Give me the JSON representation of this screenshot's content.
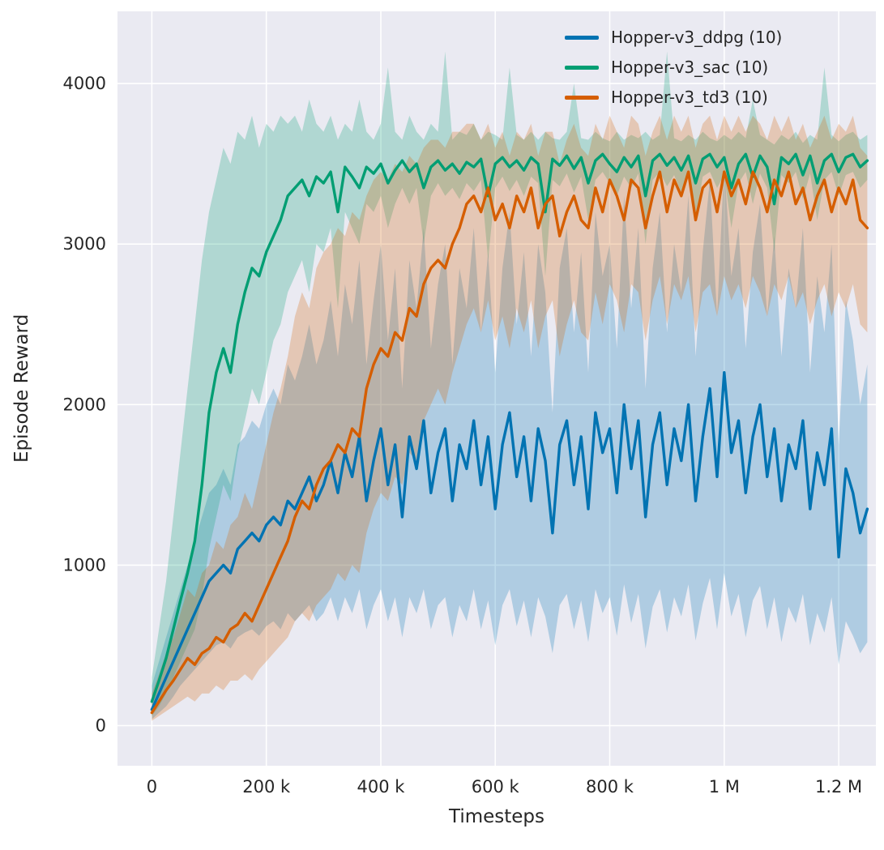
{
  "chart_data": {
    "type": "line",
    "title": "",
    "xlabel": "Timesteps",
    "ylabel": "Episode Reward",
    "xlim": [
      -60000,
      1265000
    ],
    "ylim": [
      -250,
      4450
    ],
    "grid": true,
    "plot_bg": "#eaeaf2",
    "grid_color": "#ffffff",
    "band_opacity": 0.25,
    "legend_position": "upper right",
    "x_ticks": [
      {
        "v": 0,
        "label": "0"
      },
      {
        "v": 200000,
        "label": "200 k"
      },
      {
        "v": 400000,
        "label": "400 k"
      },
      {
        "v": 600000,
        "label": "600 k"
      },
      {
        "v": 800000,
        "label": "800 k"
      },
      {
        "v": 1000000,
        "label": "1 M"
      },
      {
        "v": 1200000,
        "label": "1.2 M"
      }
    ],
    "y_ticks": [
      {
        "v": 0,
        "label": "0"
      },
      {
        "v": 1000,
        "label": "1000"
      },
      {
        "v": 2000,
        "label": "2000"
      },
      {
        "v": 3000,
        "label": "3000"
      },
      {
        "v": 4000,
        "label": "4000"
      }
    ],
    "series": [
      {
        "name": "Hopper-v3_ddpg (10)",
        "color": "#0173b2",
        "x_start": 0,
        "x_step": 12500,
        "mean": [
          100,
          200,
          300,
          400,
          500,
          600,
          700,
          800,
          900,
          950,
          1000,
          950,
          1100,
          1150,
          1200,
          1150,
          1250,
          1300,
          1250,
          1400,
          1350,
          1450,
          1550,
          1400,
          1500,
          1650,
          1450,
          1700,
          1550,
          1800,
          1400,
          1650,
          1850,
          1500,
          1750,
          1300,
          1800,
          1600,
          1900,
          1450,
          1700,
          1850,
          1400,
          1750,
          1600,
          1900,
          1500,
          1800,
          1350,
          1750,
          1950,
          1550,
          1800,
          1400,
          1850,
          1650,
          1200,
          1750,
          1900,
          1500,
          1800,
          1350,
          1950,
          1700,
          1850,
          1450,
          2000,
          1600,
          1900,
          1300,
          1750,
          1950,
          1500,
          1850,
          1650,
          2000,
          1400,
          1800,
          2100,
          1550,
          2200,
          1700,
          1900,
          1450,
          1800,
          2000,
          1550,
          1850,
          1400,
          1750,
          1600,
          1900,
          1350,
          1700,
          1500,
          1850,
          1050,
          1600,
          1450,
          1200,
          1350
        ],
        "low": [
          40,
          80,
          120,
          180,
          250,
          300,
          350,
          400,
          450,
          500,
          520,
          480,
          550,
          580,
          600,
          560,
          620,
          650,
          600,
          700,
          650,
          700,
          750,
          650,
          700,
          800,
          650,
          800,
          700,
          850,
          600,
          750,
          850,
          650,
          800,
          550,
          800,
          700,
          850,
          600,
          750,
          800,
          550,
          750,
          650,
          850,
          600,
          780,
          500,
          750,
          850,
          620,
          780,
          550,
          800,
          680,
          450,
          750,
          820,
          600,
          780,
          520,
          850,
          700,
          800,
          560,
          880,
          640,
          820,
          480,
          740,
          850,
          580,
          800,
          680,
          880,
          530,
          760,
          920,
          600,
          950,
          680,
          820,
          550,
          780,
          870,
          600,
          800,
          520,
          740,
          640,
          820,
          500,
          700,
          580,
          800,
          380,
          650,
          560,
          450,
          520
        ],
        "high": [
          250,
          400,
          550,
          700,
          850,
          1000,
          1150,
          1300,
          1450,
          1500,
          1600,
          1500,
          1750,
          1800,
          1900,
          1850,
          2000,
          2100,
          2000,
          2250,
          2150,
          2300,
          2500,
          2250,
          2400,
          2650,
          2300,
          2750,
          2500,
          2900,
          2250,
          2650,
          3000,
          2400,
          2850,
          2100,
          2900,
          2600,
          3100,
          2350,
          2750,
          3000,
          2250,
          2850,
          2600,
          3100,
          2450,
          2950,
          2200,
          2850,
          3200,
          2500,
          2950,
          2300,
          3000,
          2700,
          1950,
          2850,
          3100,
          2450,
          2950,
          2200,
          3200,
          2800,
          3000,
          2350,
          3300,
          2600,
          3100,
          2100,
          2850,
          3200,
          2450,
          3000,
          2700,
          3300,
          2300,
          2950,
          3400,
          2550,
          3500,
          2800,
          3100,
          2350,
          2950,
          3250,
          2550,
          3050,
          2300,
          2850,
          2600,
          3100,
          2200,
          2800,
          2450,
          3000,
          1750,
          2650,
          2400,
          2000,
          2250
        ]
      },
      {
        "name": "Hopper-v3_sac (10)",
        "color": "#029e73",
        "x_start": 0,
        "x_step": 12500,
        "mean": [
          150,
          280,
          420,
          600,
          780,
          950,
          1150,
          1500,
          1950,
          2200,
          2350,
          2200,
          2500,
          2700,
          2850,
          2800,
          2950,
          3050,
          3150,
          3300,
          3350,
          3400,
          3300,
          3420,
          3380,
          3450,
          3200,
          3480,
          3420,
          3350,
          3480,
          3440,
          3500,
          3380,
          3460,
          3520,
          3450,
          3500,
          3350,
          3480,
          3520,
          3460,
          3500,
          3440,
          3510,
          3480,
          3530,
          3300,
          3500,
          3540,
          3480,
          3520,
          3460,
          3540,
          3500,
          3200,
          3530,
          3490,
          3550,
          3470,
          3540,
          3380,
          3520,
          3560,
          3500,
          3450,
          3540,
          3480,
          3550,
          3300,
          3520,
          3560,
          3490,
          3540,
          3460,
          3550,
          3380,
          3530,
          3560,
          3480,
          3540,
          3350,
          3500,
          3560,
          3420,
          3550,
          3480,
          3250,
          3540,
          3500,
          3560,
          3430,
          3550,
          3380,
          3520,
          3560,
          3450,
          3540,
          3560,
          3480,
          3520
        ],
        "low": [
          60,
          120,
          200,
          300,
          400,
          500,
          600,
          800,
          1100,
          1300,
          1500,
          1400,
          1700,
          1900,
          2100,
          2000,
          2200,
          2400,
          2500,
          2700,
          2800,
          2900,
          2700,
          3000,
          2950,
          3100,
          2600,
          3200,
          3100,
          3000,
          3250,
          3200,
          3300,
          3100,
          3250,
          3350,
          3250,
          3350,
          3000,
          3300,
          3380,
          3300,
          3350,
          3280,
          3380,
          3330,
          3400,
          2900,
          3350,
          3420,
          3330,
          3400,
          3300,
          3420,
          3380,
          2800,
          3400,
          3360,
          3440,
          3320,
          3420,
          3150,
          3400,
          3450,
          3380,
          3300,
          3420,
          3350,
          3440,
          3000,
          3400,
          3450,
          3360,
          3430,
          3320,
          3440,
          3150,
          3420,
          3450,
          3350,
          3430,
          3100,
          3380,
          3450,
          3250,
          3440,
          3350,
          2950,
          3430,
          3380,
          3450,
          3280,
          3440,
          3150,
          3400,
          3450,
          3300,
          3430,
          3450,
          3350,
          3400
        ],
        "high": [
          300,
          600,
          900,
          1300,
          1700,
          2100,
          2500,
          2900,
          3200,
          3400,
          3600,
          3500,
          3700,
          3650,
          3800,
          3600,
          3750,
          3700,
          3800,
          3750,
          3800,
          3700,
          3900,
          3750,
          3700,
          3800,
          3650,
          3750,
          3700,
          3900,
          3700,
          3650,
          3750,
          4100,
          3700,
          3650,
          3800,
          3700,
          3650,
          3750,
          3700,
          4200,
          3650,
          3700,
          3680,
          3750,
          3650,
          3700,
          3680,
          3650,
          4100,
          3680,
          3650,
          3700,
          3650,
          3700,
          3660,
          3650,
          3700,
          4000,
          3660,
          3650,
          3700,
          3660,
          3640,
          3700,
          3650,
          3680,
          3660,
          3700,
          3650,
          3680,
          4200,
          3660,
          3640,
          3680,
          3650,
          3700,
          3660,
          3640,
          3680,
          3650,
          3700,
          3660,
          3900,
          3680,
          3650,
          3620,
          3680,
          3650,
          3700,
          3630,
          3680,
          3650,
          4100,
          3680,
          3640,
          3680,
          3700,
          3650,
          3680
        ]
      },
      {
        "name": "Hopper-v3_td3 (10)",
        "color": "#d55e00",
        "x_start": 0,
        "x_step": 12500,
        "mean": [
          80,
          150,
          220,
          280,
          350,
          420,
          380,
          450,
          480,
          550,
          520,
          600,
          630,
          700,
          650,
          750,
          850,
          950,
          1050,
          1150,
          1300,
          1400,
          1350,
          1500,
          1600,
          1650,
          1750,
          1700,
          1850,
          1800,
          2100,
          2250,
          2350,
          2300,
          2450,
          2400,
          2600,
          2550,
          2750,
          2850,
          2900,
          2850,
          3000,
          3100,
          3250,
          3300,
          3200,
          3350,
          3150,
          3250,
          3100,
          3300,
          3200,
          3350,
          3100,
          3250,
          3300,
          3050,
          3200,
          3300,
          3150,
          3100,
          3350,
          3200,
          3400,
          3300,
          3150,
          3400,
          3350,
          3100,
          3300,
          3450,
          3200,
          3400,
          3300,
          3450,
          3150,
          3350,
          3400,
          3200,
          3450,
          3300,
          3400,
          3250,
          3450,
          3350,
          3200,
          3400,
          3300,
          3450,
          3250,
          3350,
          3150,
          3300,
          3400,
          3200,
          3350,
          3250,
          3400,
          3150,
          3100
        ],
        "low": [
          30,
          60,
          90,
          120,
          150,
          180,
          150,
          200,
          200,
          250,
          220,
          280,
          280,
          320,
          280,
          350,
          400,
          450,
          500,
          550,
          650,
          700,
          650,
          750,
          800,
          850,
          950,
          900,
          1000,
          950,
          1200,
          1350,
          1450,
          1400,
          1550,
          1500,
          1700,
          1650,
          1900,
          2000,
          2100,
          2000,
          2200,
          2350,
          2500,
          2600,
          2450,
          2650,
          2400,
          2550,
          2350,
          2600,
          2450,
          2650,
          2350,
          2550,
          2650,
          2300,
          2500,
          2650,
          2450,
          2400,
          2700,
          2500,
          2750,
          2650,
          2450,
          2750,
          2700,
          2400,
          2650,
          2800,
          2500,
          2750,
          2650,
          2800,
          2450,
          2700,
          2750,
          2550,
          2800,
          2650,
          2750,
          2600,
          2800,
          2700,
          2550,
          2750,
          2650,
          2800,
          2600,
          2700,
          2500,
          2650,
          2750,
          2550,
          2700,
          2600,
          2750,
          2500,
          2450
        ],
        "high": [
          200,
          320,
          450,
          550,
          700,
          850,
          800,
          950,
          1000,
          1150,
          1100,
          1250,
          1300,
          1450,
          1350,
          1550,
          1750,
          1950,
          2100,
          2300,
          2550,
          2700,
          2600,
          2850,
          2950,
          3000,
          3100,
          3050,
          3200,
          3150,
          3300,
          3400,
          3450,
          3400,
          3500,
          3450,
          3550,
          3500,
          3600,
          3650,
          3650,
          3600,
          3700,
          3700,
          3750,
          3750,
          3650,
          3750,
          3600,
          3700,
          3550,
          3700,
          3650,
          3750,
          3550,
          3700,
          3700,
          3500,
          3650,
          3750,
          3600,
          3550,
          3750,
          3650,
          3800,
          3700,
          3600,
          3800,
          3750,
          3550,
          3700,
          3800,
          3650,
          3800,
          3700,
          3800,
          3600,
          3750,
          3800,
          3650,
          3800,
          3700,
          3800,
          3700,
          3800,
          3750,
          3650,
          3800,
          3700,
          3800,
          3650,
          3750,
          3600,
          3700,
          3800,
          3650,
          3750,
          3700,
          3800,
          3600,
          3550
        ]
      }
    ]
  }
}
